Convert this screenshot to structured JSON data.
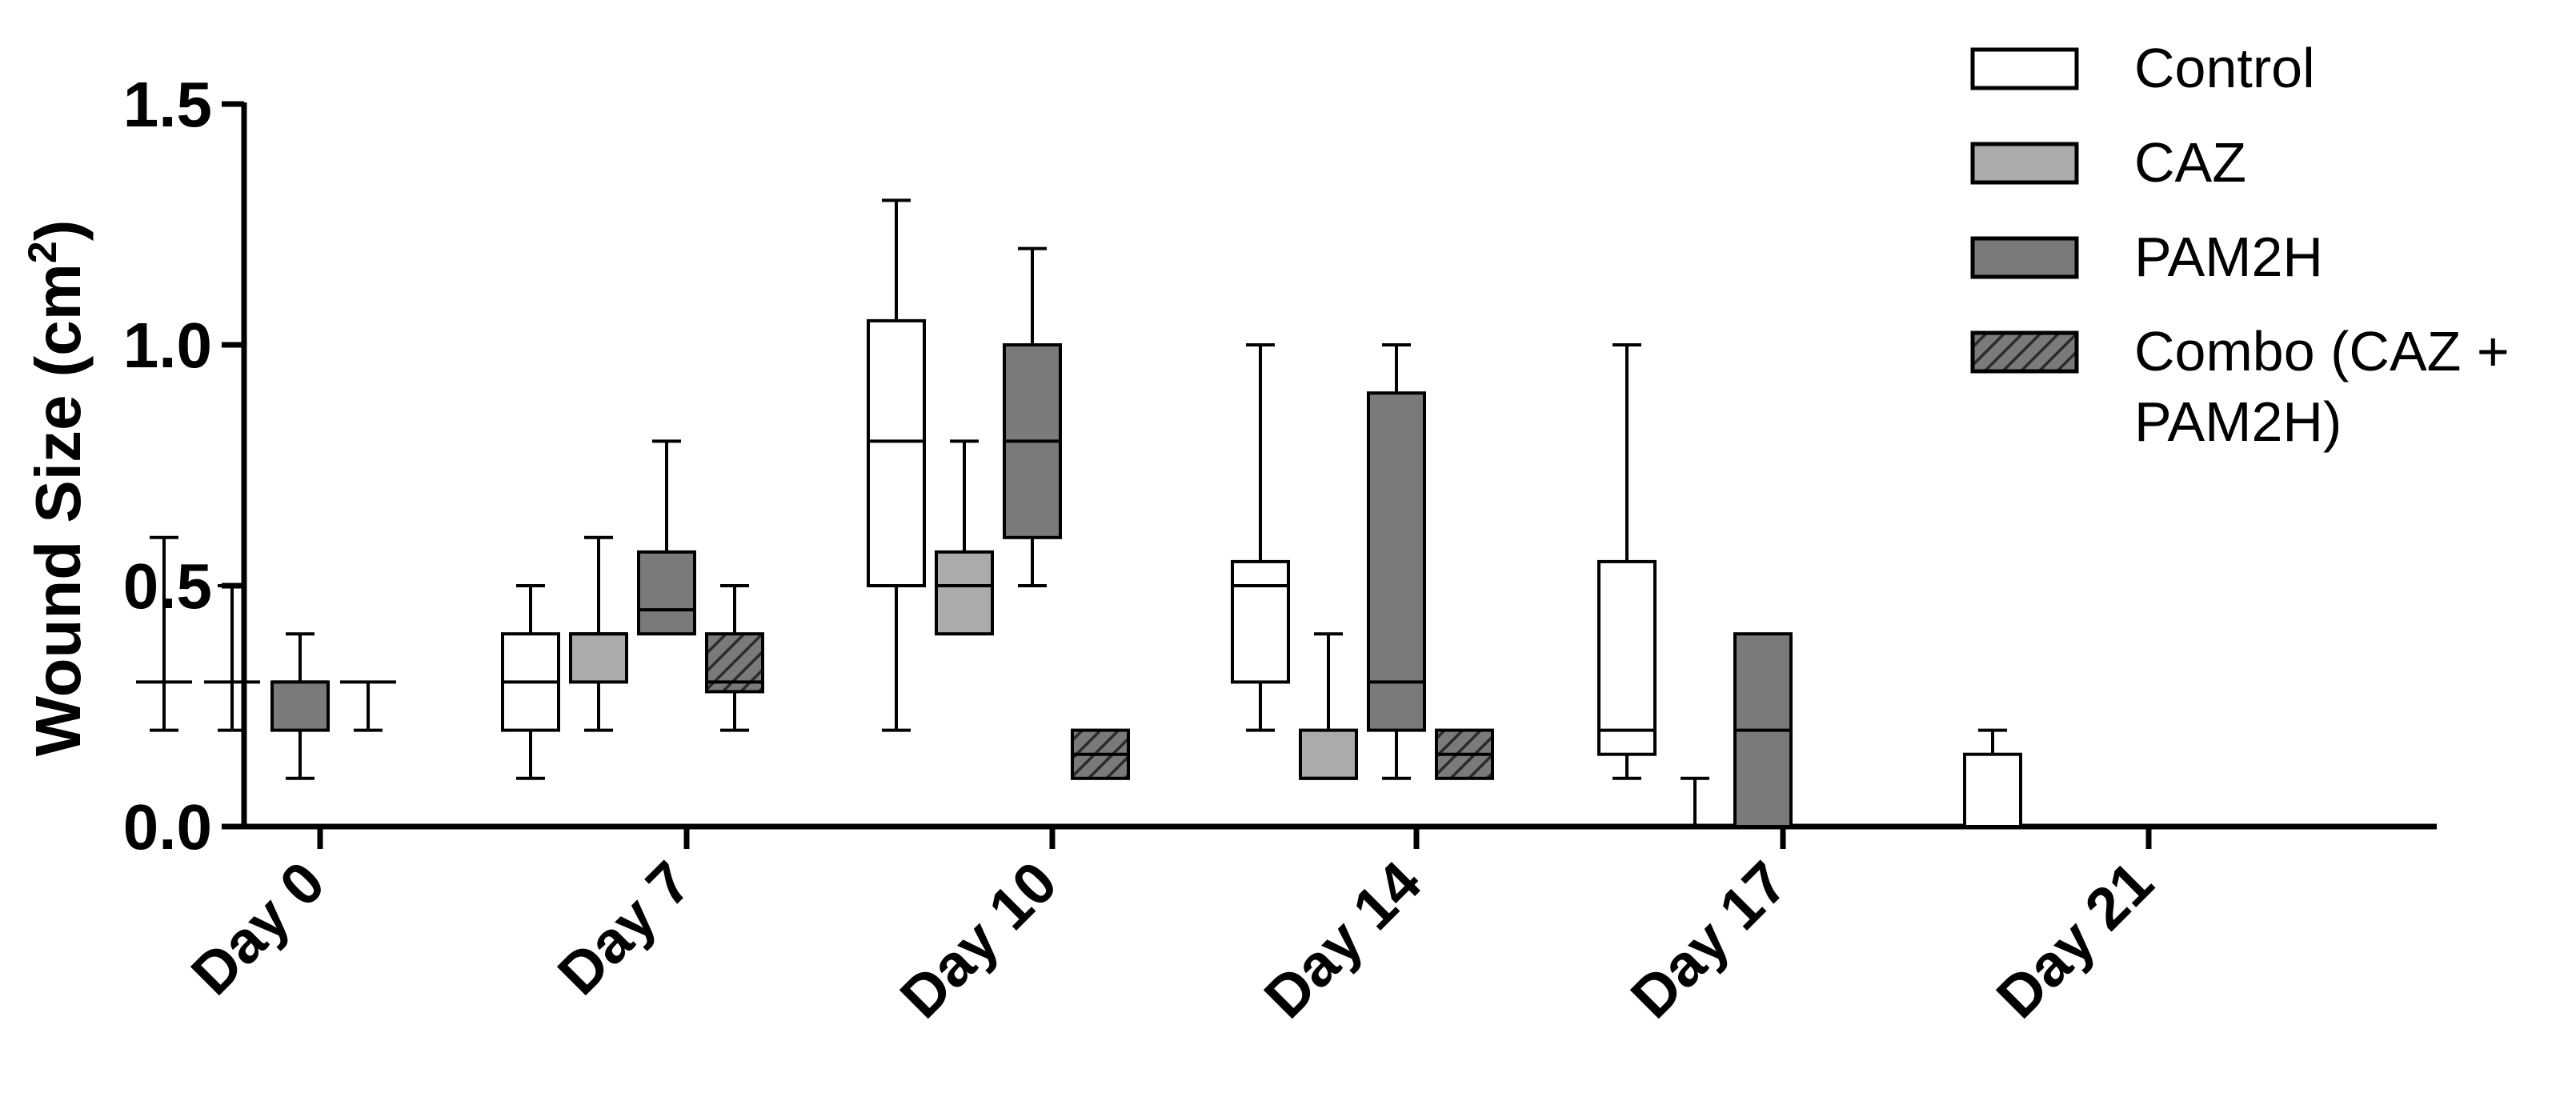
{
  "chart_data": {
    "type": "boxplot",
    "title": "",
    "xlabel": "",
    "ylabel": "Wound Size (cm",
    "ylabel_superscript": "2",
    "ylabel_suffix": ")",
    "ylim": [
      0,
      1.5
    ],
    "yticks": [
      "0.0",
      "0.5",
      "1.0",
      "1.5"
    ],
    "categories": [
      "Day 0",
      "Day 7",
      "Day 10",
      "Day 14",
      "Day 17",
      "Day 21"
    ],
    "legend_position": "top-right",
    "series": [
      {
        "name": "Control",
        "fill": "#ffffff",
        "pattern": "none",
        "values": [
          {
            "category": "Day 0",
            "min": 0.2,
            "q1": 0.3,
            "median": 0.3,
            "q3": 0.3,
            "max": 0.6
          },
          {
            "category": "Day 7",
            "min": 0.1,
            "q1": 0.2,
            "median": 0.3,
            "q3": 0.4,
            "max": 0.5
          },
          {
            "category": "Day 10",
            "min": 0.2,
            "q1": 0.5,
            "median": 0.8,
            "q3": 1.05,
            "max": 1.3
          },
          {
            "category": "Day 14",
            "min": 0.2,
            "q1": 0.3,
            "median": 0.5,
            "q3": 0.55,
            "max": 1.0
          },
          {
            "category": "Day 17",
            "min": 0.1,
            "q1": 0.15,
            "median": 0.2,
            "q3": 0.55,
            "max": 1.0
          },
          {
            "category": "Day 21",
            "min": 0.0,
            "q1": 0.0,
            "median": 0.0,
            "q3": 0.15,
            "max": 0.2
          }
        ]
      },
      {
        "name": "CAZ",
        "fill": "#ababab",
        "pattern": "none",
        "values": [
          {
            "category": "Day 0",
            "min": 0.2,
            "q1": 0.3,
            "median": 0.3,
            "q3": 0.3,
            "max": 0.5
          },
          {
            "category": "Day 7",
            "min": 0.2,
            "q1": 0.3,
            "median": 0.4,
            "q3": 0.4,
            "max": 0.6
          },
          {
            "category": "Day 10",
            "min": 0.4,
            "q1": 0.4,
            "median": 0.5,
            "q3": 0.57,
            "max": 0.8
          },
          {
            "category": "Day 14",
            "min": 0.1,
            "q1": 0.1,
            "median": 0.1,
            "q3": 0.2,
            "max": 0.4
          },
          {
            "category": "Day 17",
            "min": 0.0,
            "q1": 0.0,
            "median": 0.0,
            "q3": 0.0,
            "max": 0.1
          },
          {
            "category": "Day 21",
            "min": 0.0,
            "q1": 0.0,
            "median": 0.0,
            "q3": 0.0,
            "max": 0.0
          }
        ]
      },
      {
        "name": "PAM2H",
        "fill": "#7a7a7a",
        "pattern": "none",
        "values": [
          {
            "category": "Day 0",
            "min": 0.1,
            "q1": 0.2,
            "median": 0.3,
            "q3": 0.3,
            "max": 0.4
          },
          {
            "category": "Day 7",
            "min": 0.4,
            "q1": 0.4,
            "median": 0.45,
            "q3": 0.57,
            "max": 0.8
          },
          {
            "category": "Day 10",
            "min": 0.5,
            "q1": 0.6,
            "median": 0.8,
            "q3": 1.0,
            "max": 1.2
          },
          {
            "category": "Day 14",
            "min": 0.1,
            "q1": 0.2,
            "median": 0.3,
            "q3": 0.9,
            "max": 1.0
          },
          {
            "category": "Day 17",
            "min": 0.0,
            "q1": 0.0,
            "median": 0.2,
            "q3": 0.4,
            "max": 0.4
          },
          {
            "category": "Day 21",
            "min": 0.0,
            "q1": 0.0,
            "median": 0.0,
            "q3": 0.0,
            "max": 0.0
          }
        ]
      },
      {
        "name": "Combo (CAZ + PAM2H)",
        "legend_lines": [
          "Combo (CAZ +",
          "PAM2H)"
        ],
        "fill": "#7a7a7a",
        "pattern": "hatch",
        "values": [
          {
            "category": "Day 0",
            "min": 0.2,
            "q1": 0.3,
            "median": 0.3,
            "q3": 0.3,
            "max": 0.3
          },
          {
            "category": "Day 7",
            "min": 0.2,
            "q1": 0.28,
            "median": 0.3,
            "q3": 0.4,
            "max": 0.5
          },
          {
            "category": "Day 10",
            "min": 0.1,
            "q1": 0.1,
            "median": 0.15,
            "q3": 0.2,
            "max": 0.2
          },
          {
            "category": "Day 14",
            "min": 0.1,
            "q1": 0.1,
            "median": 0.15,
            "q3": 0.2,
            "max": 0.2
          },
          {
            "category": "Day 17",
            "min": 0.0,
            "q1": 0.0,
            "median": 0.0,
            "q3": 0.0,
            "max": 0.0
          },
          {
            "category": "Day 21",
            "min": 0.0,
            "q1": 0.0,
            "median": 0.0,
            "q3": 0.0,
            "max": 0.0
          }
        ]
      }
    ]
  }
}
